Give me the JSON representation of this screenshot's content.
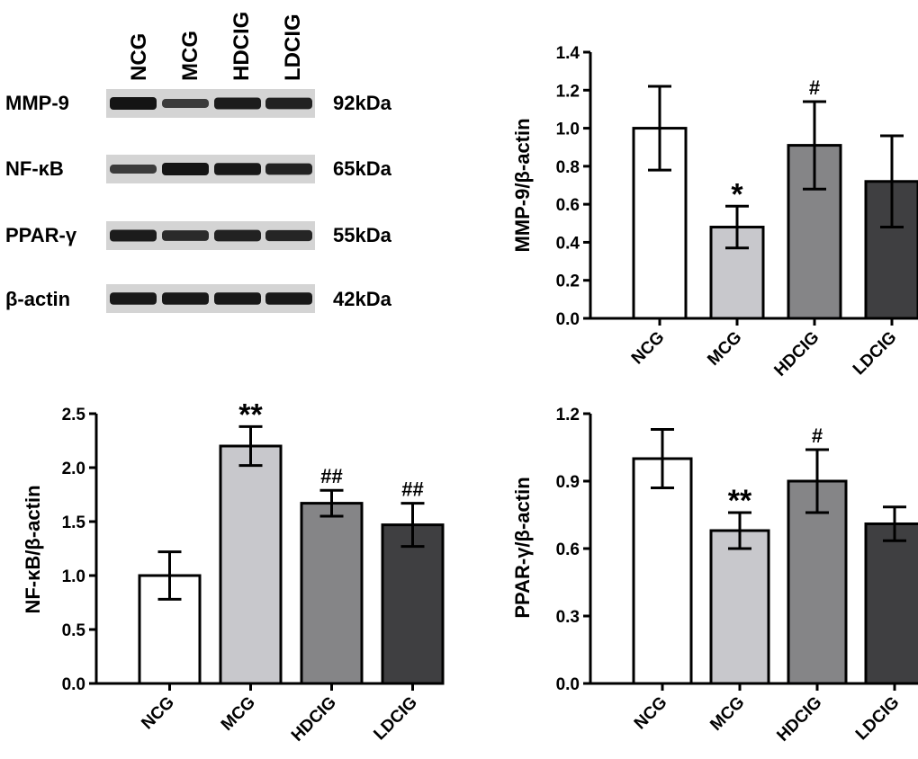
{
  "western_blot": {
    "lanes": [
      "NCG",
      "MCG",
      "HDCIG",
      "LDCIG"
    ],
    "proteins": [
      {
        "name": "MMP-9",
        "kda": "92kDa",
        "intensity": [
          1.0,
          0.55,
          0.9,
          0.85
        ]
      },
      {
        "name": "NF-κB",
        "kda": "65kDa",
        "intensity": [
          0.55,
          1.0,
          0.95,
          0.85
        ]
      },
      {
        "name": "PPAR-γ",
        "kda": "55kDa",
        "intensity": [
          0.9,
          0.75,
          0.85,
          0.8
        ]
      },
      {
        "name": "β-actin",
        "kda": "42kDa",
        "intensity": [
          0.95,
          0.95,
          0.95,
          0.95
        ]
      }
    ]
  },
  "colors": {
    "NCG": "#ffffff",
    "MCG": "#c8c8cc",
    "HDCIG": "#858587",
    "LDCIG": "#3f3f41",
    "band": "#141414",
    "blot_bg": "#d4d4d4"
  },
  "chart_data": [
    {
      "type": "bar",
      "title": "",
      "ylabel": "MMP-9/β-actin",
      "categories": [
        "NCG",
        "MCG",
        "HDCIG",
        "LDCIG"
      ],
      "values": [
        1.0,
        0.48,
        0.91,
        0.72
      ],
      "errors": [
        0.22,
        0.11,
        0.23,
        0.24
      ],
      "annotations": [
        "",
        "*",
        "#",
        ""
      ],
      "ylim": [
        0,
        1.4
      ],
      "yticks": [
        "0.0",
        "0.2",
        "0.4",
        "0.6",
        "0.8",
        "1.0",
        "1.2",
        "1.4"
      ]
    },
    {
      "type": "bar",
      "title": "",
      "ylabel": "NF-κB/β-actin",
      "categories": [
        "NCG",
        "MCG",
        "HDCIG",
        "LDCIG"
      ],
      "values": [
        1.0,
        2.2,
        1.67,
        1.47
      ],
      "errors": [
        0.22,
        0.18,
        0.12,
        0.2
      ],
      "annotations": [
        "",
        "**",
        "##",
        "##"
      ],
      "ylim": [
        0,
        2.5
      ],
      "yticks": [
        "0.0",
        "0.5",
        "1.0",
        "1.5",
        "2.0",
        "2.5"
      ]
    },
    {
      "type": "bar",
      "title": "",
      "ylabel": "PPAR-γ/β-actin",
      "categories": [
        "NCG",
        "MCG",
        "HDCIG",
        "LDCIG"
      ],
      "values": [
        1.0,
        0.68,
        0.9,
        0.71
      ],
      "errors": [
        0.13,
        0.08,
        0.14,
        0.075
      ],
      "annotations": [
        "",
        "**",
        "#",
        ""
      ],
      "ylim": [
        0,
        1.2
      ],
      "yticks": [
        "0.0",
        "0.3",
        "0.6",
        "0.9",
        "1.2"
      ]
    }
  ]
}
